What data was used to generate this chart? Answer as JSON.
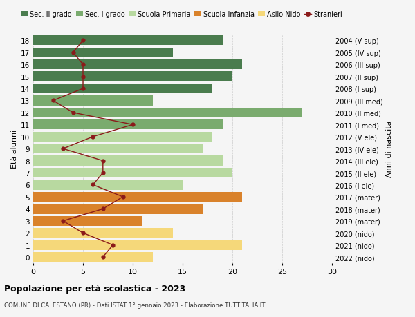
{
  "ages": [
    18,
    17,
    16,
    15,
    14,
    13,
    12,
    11,
    10,
    9,
    8,
    7,
    6,
    5,
    4,
    3,
    2,
    1,
    0
  ],
  "right_labels": [
    "2004 (V sup)",
    "2005 (IV sup)",
    "2006 (III sup)",
    "2007 (II sup)",
    "2008 (I sup)",
    "2009 (III med)",
    "2010 (II med)",
    "2011 (I med)",
    "2012 (V ele)",
    "2013 (IV ele)",
    "2014 (III ele)",
    "2015 (II ele)",
    "2016 (I ele)",
    "2017 (mater)",
    "2018 (mater)",
    "2019 (mater)",
    "2020 (nido)",
    "2021 (nido)",
    "2022 (nido)"
  ],
  "bar_values": [
    19,
    14,
    21,
    20,
    18,
    12,
    27,
    19,
    18,
    17,
    19,
    20,
    15,
    21,
    17,
    11,
    14,
    21,
    12
  ],
  "bar_colors": [
    "#4a7c4e",
    "#4a7c4e",
    "#4a7c4e",
    "#4a7c4e",
    "#4a7c4e",
    "#7aab6e",
    "#7aab6e",
    "#7aab6e",
    "#b8d9a0",
    "#b8d9a0",
    "#b8d9a0",
    "#b8d9a0",
    "#b8d9a0",
    "#d9822b",
    "#d9822b",
    "#d9822b",
    "#f5d87a",
    "#f5d87a",
    "#f5d87a"
  ],
  "stranieri_values": [
    5,
    4,
    5,
    5,
    5,
    2,
    4,
    10,
    6,
    3,
    7,
    7,
    6,
    9,
    7,
    3,
    5,
    8,
    7
  ],
  "stranieri_color": "#8b1a1a",
  "legend_labels": [
    "Sec. II grado",
    "Sec. I grado",
    "Scuola Primaria",
    "Scuola Infanzia",
    "Asilo Nido",
    "Stranieri"
  ],
  "legend_colors": [
    "#4a7c4e",
    "#7aab6e",
    "#b8d9a0",
    "#d9822b",
    "#f5d87a",
    "#8b1a1a"
  ],
  "title": "Popolazione per età scolastica - 2023",
  "subtitle": "COMUNE DI CALESTANO (PR) - Dati ISTAT 1° gennaio 2023 - Elaborazione TUTTITALIA.IT",
  "ylabel_left": "Età alunni",
  "ylabel_right": "Anni di nascita",
  "xlim": [
    0,
    30
  ],
  "background_color": "#f5f5f5"
}
